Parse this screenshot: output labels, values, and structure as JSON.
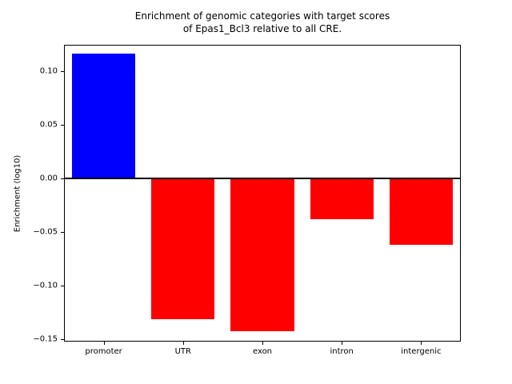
{
  "chart_data": {
    "type": "bar",
    "title": "Enrichment of genomic categories with target scores\nof Epas1_Bcl3 relative to all CRE.",
    "categories": [
      "promoter",
      "UTR",
      "exon",
      "intron",
      "intergenic"
    ],
    "values": [
      0.117,
      -0.131,
      -0.142,
      -0.038,
      -0.062
    ],
    "bar_colors": [
      "#0000ff",
      "#ff0000",
      "#ff0000",
      "#ff0000",
      "#ff0000"
    ],
    "xlabel": "",
    "ylabel": "Enrichment (log10)",
    "ylim": [
      -0.152,
      0.125
    ],
    "yticks": [
      0.1,
      0.05,
      0.0,
      -0.05,
      -0.1,
      -0.15
    ],
    "bar_width_fraction": 0.8,
    "zero_line": true,
    "grid": false,
    "legend": null,
    "axis_color": "#000000",
    "background_color": "#ffffff"
  }
}
